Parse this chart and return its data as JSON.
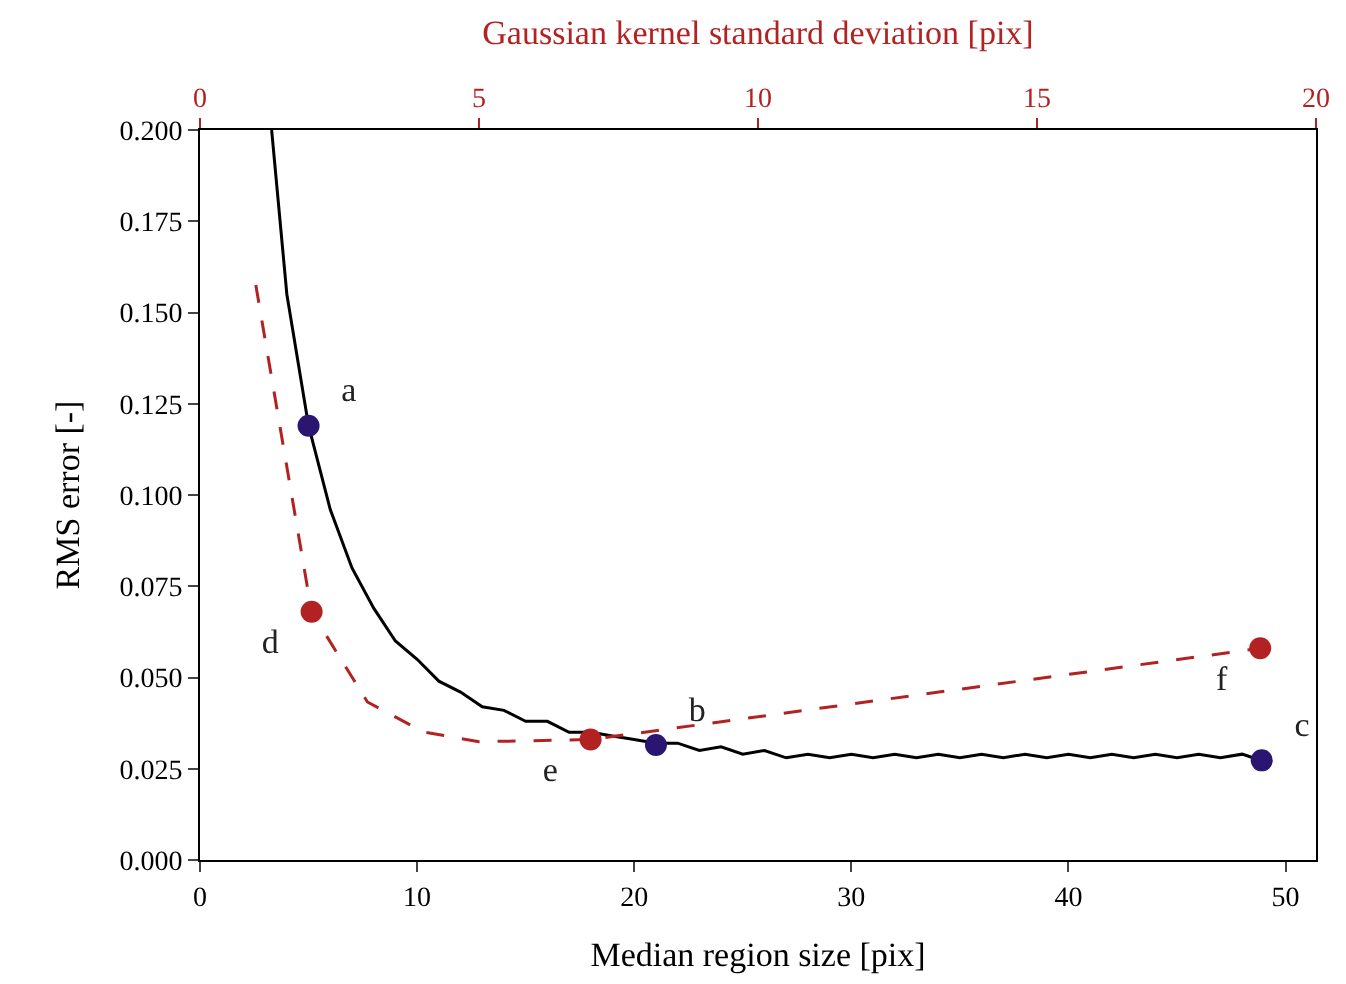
{
  "chart_data": {
    "type": "line",
    "xlabel": "Median region size [pix]",
    "ylabel": "RMS error [-]",
    "x2label": "Gaussian kernel standard deviation [pix]",
    "series": [
      {
        "color": "#000000",
        "line_style": "solid",
        "marker": "none",
        "x": [
          3.3,
          4,
          5,
          6,
          7,
          8,
          9,
          10,
          11,
          12,
          13,
          14,
          15,
          16,
          17,
          18,
          19,
          20,
          21,
          22,
          23,
          24,
          25,
          26,
          27,
          28,
          29,
          30,
          31,
          32,
          33,
          34,
          35,
          36,
          37,
          38,
          39,
          40,
          41,
          42,
          43,
          44,
          45,
          46,
          47,
          48,
          49
        ],
        "values": [
          0.2,
          0.155,
          0.119,
          0.096,
          0.08,
          0.069,
          0.06,
          0.055,
          0.049,
          0.046,
          0.042,
          0.041,
          0.038,
          0.038,
          0.035,
          0.035,
          0.034,
          0.033,
          0.032,
          0.032,
          0.03,
          0.031,
          0.029,
          0.03,
          0.028,
          0.029,
          0.028,
          0.029,
          0.028,
          0.029,
          0.028,
          0.029,
          0.028,
          0.029,
          0.028,
          0.029,
          0.028,
          0.029,
          0.028,
          0.029,
          0.028,
          0.029,
          0.028,
          0.029,
          0.028,
          0.029,
          0.027
        ]
      },
      {
        "axis": "x2",
        "color": "#b22222",
        "line_style": "dashed",
        "marker": "none",
        "x": [
          1,
          2,
          3,
          4,
          5,
          7,
          19
        ],
        "values": [
          0.1575,
          0.068,
          0.0433,
          0.0351,
          0.0324,
          0.033,
          0.058
        ]
      },
      {
        "type": "scatter",
        "color": "#2a1670",
        "marker": "circle",
        "x": [
          5,
          21,
          48.9
        ],
        "values": [
          0.119,
          0.0315,
          0.0273
        ],
        "value_labels": [
          "a",
          "b",
          "c"
        ]
      },
      {
        "type": "scatter",
        "axis": "x2",
        "color": "#b22222",
        "marker": "circle",
        "x": [
          2,
          7,
          19
        ],
        "values": [
          0.068,
          0.033,
          0.058
        ],
        "value_labels": [
          "d",
          "e",
          "f"
        ]
      }
    ],
    "xlim": [
      0,
      51.4
    ],
    "xticks": [
      0,
      10,
      20,
      30,
      40,
      50
    ],
    "x2lim": [
      0,
      20
    ],
    "x2ticks": [
      0,
      5,
      10,
      15,
      20
    ],
    "ylim": [
      0,
      0.2
    ],
    "yticks": [
      {
        "value": 0,
        "label": "0.000"
      },
      {
        "value": 0.025,
        "label": "0.025"
      },
      {
        "value": 0.05,
        "label": "0.050"
      },
      {
        "value": 0.075,
        "label": "0.075"
      },
      {
        "value": 0.1,
        "label": "0.100"
      },
      {
        "value": 0.125,
        "label": "0.125"
      },
      {
        "value": 0.15,
        "label": "0.150"
      },
      {
        "value": 0.175,
        "label": "0.175"
      },
      {
        "value": 0.2,
        "label": "0.200"
      }
    ]
  }
}
